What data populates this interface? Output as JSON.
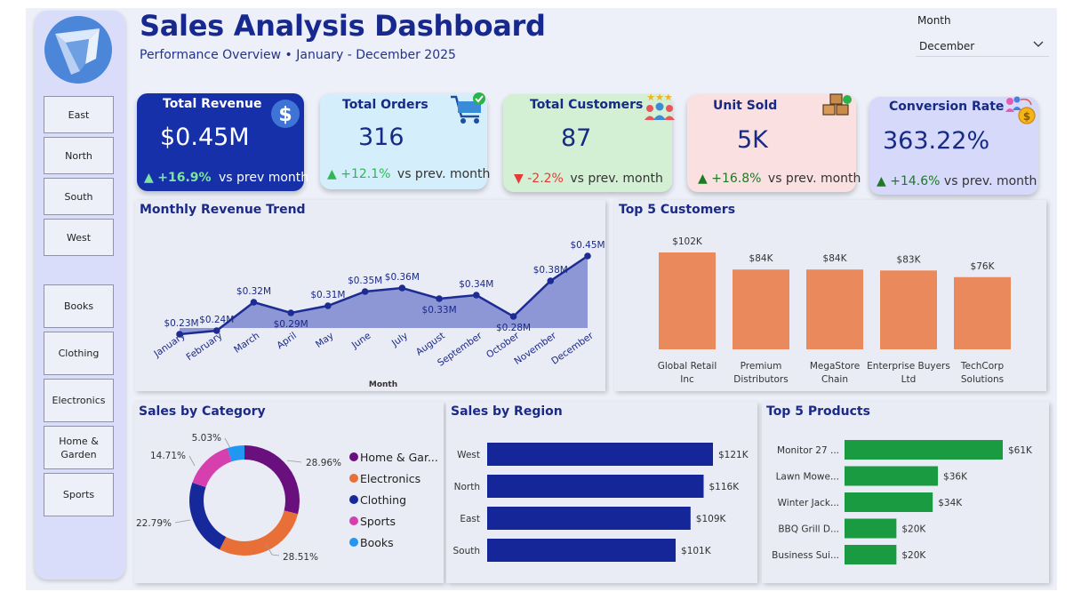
{
  "header": {
    "title": "Sales Analysis Dashboard",
    "subtitle": "Performance Overview • January - December 2025"
  },
  "filter": {
    "label": "Month",
    "value": "December"
  },
  "sidebar": {
    "regions": [
      "East",
      "North",
      "South",
      "West"
    ],
    "categories": [
      "Books",
      "Clothing",
      "Electronics",
      "Home & Garden",
      "Sports"
    ]
  },
  "kpis": {
    "revenue": {
      "title": "Total Revenue",
      "value": "$0.45M",
      "delta": "+16.9%",
      "suffix": "vs prev month",
      "direction": "up"
    },
    "orders": {
      "title": "Total Orders",
      "value": "316",
      "delta": "+12.1%",
      "suffix": "vs prev. month",
      "direction": "up"
    },
    "customers": {
      "title": "Total Customers",
      "value": "87",
      "delta": "-2.2%",
      "suffix": "vs prev. month",
      "direction": "down"
    },
    "units": {
      "title": "Unit Sold",
      "value": "5K",
      "delta": "+16.8%",
      "suffix": "vs prev. month",
      "direction": "up"
    },
    "conversion": {
      "title": "Conversion Rate",
      "value": "363.22%",
      "delta": "+14.6%",
      "suffix": "vs prev. month",
      "direction": "up"
    }
  },
  "icons": {
    "revenue": "dollar-icon",
    "orders": "shopping-cart-icon",
    "customers": "customers-stars-icon",
    "units": "boxes-icon",
    "conversion": "conversion-icon",
    "month_dropdown": "chevron-down-icon"
  },
  "colors": {
    "brand": "#17298e",
    "revenue_card": "#1530a8",
    "orders_card": "#d4eefb",
    "customers_card": "#d4f0d4",
    "units_card": "#fbe0e2",
    "conversion_card": "#d6d9f9",
    "area_fill": "#8d97d6",
    "line": "#1c2c93",
    "customers_bar": "#ea8a5c",
    "region_bar": "#152698",
    "products_bar": "#1a9a41",
    "up": "#1d7a24",
    "down": "#e53935"
  },
  "panels": {
    "trend": "Monthly Revenue Trend",
    "customers": "Top 5 Customers",
    "category": "Sales by Category",
    "region": "Sales by Region",
    "products": "Top 5 Products"
  },
  "chart_data": [
    {
      "id": "monthly-revenue-trend",
      "type": "area",
      "title": "Monthly Revenue Trend",
      "xlabel": "Month",
      "categories": [
        "January",
        "February",
        "March",
        "April",
        "May",
        "June",
        "July",
        "August",
        "September",
        "October",
        "November",
        "December"
      ],
      "values": [
        0.23,
        0.24,
        0.32,
        0.29,
        0.31,
        0.35,
        0.36,
        0.33,
        0.34,
        0.28,
        0.38,
        0.45
      ],
      "labels": [
        "$0.23M",
        "$0.24M",
        "$0.32M",
        "$0.29M",
        "$0.31M",
        "$0.35M",
        "$0.36M",
        "$0.33M",
        "$0.34M",
        "$0.28M",
        "$0.38M",
        "$0.45M"
      ]
    },
    {
      "id": "top-5-customers",
      "type": "bar",
      "title": "Top 5 Customers",
      "categories": [
        "Global Retail Inc",
        "Premium Distributors",
        "MegaStore Chain",
        "Enterprise Buyers Ltd",
        "TechCorp Solutions"
      ],
      "values": [
        102,
        84,
        84,
        83,
        76
      ],
      "labels": [
        "$102K",
        "$84K",
        "$84K",
        "$83K",
        "$76K"
      ]
    },
    {
      "id": "sales-by-category",
      "type": "pie",
      "title": "Sales by Category",
      "categories": [
        "Home & Garden",
        "Electronics",
        "Clothing",
        "Sports",
        "Books"
      ],
      "legend": [
        "Home & Gar...",
        "Electronics",
        "Clothing",
        "Sports",
        "Books"
      ],
      "values": [
        28.96,
        28.51,
        22.79,
        14.71,
        5.03
      ],
      "labels": [
        "28.96%",
        "28.51%",
        "22.79%",
        "14.71%",
        "5.03%"
      ],
      "colors": [
        "#6a0f7e",
        "#e87038",
        "#17289a",
        "#d63fae",
        "#2196f3"
      ]
    },
    {
      "id": "sales-by-region",
      "type": "bar",
      "orientation": "horizontal",
      "title": "Sales by Region",
      "categories": [
        "West",
        "North",
        "East",
        "South"
      ],
      "values": [
        121,
        116,
        109,
        101
      ],
      "labels": [
        "$121K",
        "$116K",
        "$109K",
        "$101K"
      ]
    },
    {
      "id": "top-5-products",
      "type": "bar",
      "orientation": "horizontal",
      "title": "Top 5 Products",
      "categories": [
        "Monitor 27 ...",
        "Lawn Mowe...",
        "Winter Jack...",
        "BBQ Grill D...",
        "Business Sui..."
      ],
      "values": [
        61,
        36,
        34,
        20,
        20
      ],
      "labels": [
        "$61K",
        "$36K",
        "$34K",
        "$20K",
        "$20K"
      ]
    }
  ]
}
